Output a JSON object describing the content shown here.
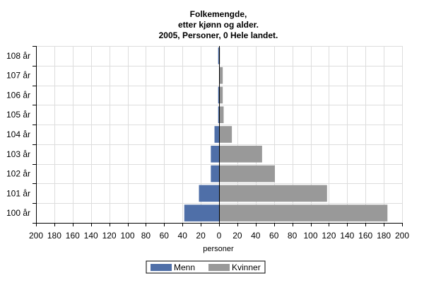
{
  "chart_data": {
    "type": "bar",
    "orientation": "horizontal",
    "layout": "population-pyramid",
    "title_lines": [
      "Folkemengde,",
      "etter kjønn og alder.",
      "2005, Personer, 0 Hele landet."
    ],
    "xlabel": "personer",
    "ylabel": "",
    "xlim": [
      -200,
      200
    ],
    "x_ticks": [
      -200,
      -180,
      -160,
      -140,
      -120,
      -100,
      -80,
      -60,
      -40,
      -20,
      0,
      20,
      40,
      60,
      80,
      100,
      120,
      140,
      160,
      180,
      200
    ],
    "x_tick_labels": [
      "200",
      "180",
      "160",
      "140",
      "120",
      "100",
      "80",
      "60",
      "40",
      "20",
      "0",
      "20",
      "40",
      "60",
      "80",
      "100",
      "120",
      "140",
      "160",
      "180",
      "200"
    ],
    "categories": [
      "100 år",
      "101 år",
      "102 år",
      "103 år",
      "104 år",
      "105 år",
      "106 år",
      "107 år",
      "108 år"
    ],
    "series": [
      {
        "name": "Menn",
        "color": "#4f6fa8",
        "side": "left",
        "values": [
          38,
          22,
          9,
          9,
          5,
          1,
          1,
          0,
          1
        ]
      },
      {
        "name": "Kvinner",
        "color": "#999999",
        "side": "right",
        "values": [
          184,
          118,
          61,
          47,
          14,
          5,
          4,
          4,
          1
        ]
      }
    ],
    "grid": true,
    "legend_position": "bottom-center"
  }
}
